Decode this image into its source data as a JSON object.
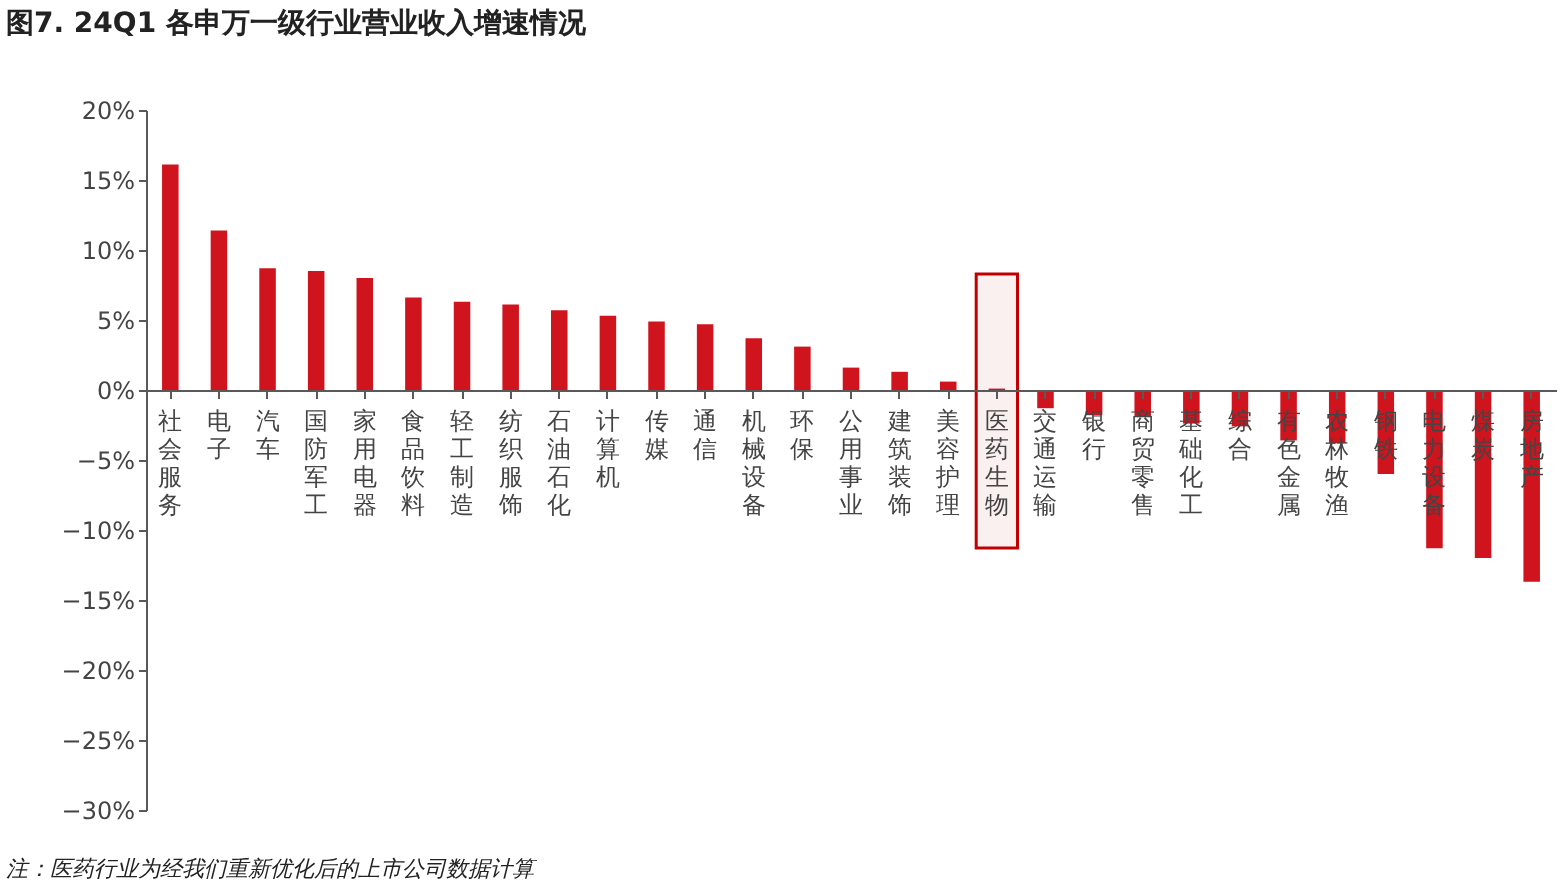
{
  "chart_data": {
    "type": "bar",
    "title": "图7. 24Q1 各申万一级行业营业收入增速情况",
    "categories": [
      "社会服务",
      "电子",
      "汽车",
      "国防军工",
      "家用电器",
      "食品饮料",
      "轻工制造",
      "纺织服饰",
      "石油石化",
      "计算机",
      "传媒",
      "通信",
      "机械设备",
      "环保",
      "公用事业",
      "建筑装饰",
      "美容护理",
      "医药生物",
      "交通运输",
      "银行",
      "商贸零售",
      "基础化工",
      "综合",
      "有色金属",
      "农林牧渔",
      "钢铁",
      "电力设备",
      "煤炭",
      "房地产"
    ],
    "values": [
      16.1,
      11.4,
      8.7,
      8.5,
      8.0,
      6.6,
      6.3,
      6.1,
      5.7,
      5.3,
      4.9,
      4.7,
      3.7,
      3.1,
      1.6,
      1.3,
      0.6,
      0.1,
      -1.3,
      -1.8,
      -1.9,
      -2.4,
      -2.6,
      -3.6,
      -3.8,
      -6.0,
      -11.3,
      -12.0,
      -13.7
    ],
    "color": "#d0141e",
    "ylim": [
      -30,
      20
    ],
    "yticks": [
      {
        "value": -30,
        "label": "−30%"
      },
      {
        "value": -25,
        "label": "−25%"
      },
      {
        "value": -20,
        "label": "−20%"
      },
      {
        "value": -15,
        "label": "−15%"
      },
      {
        "value": -10,
        "label": "−10%"
      },
      {
        "value": -5,
        "label": "−5%"
      },
      {
        "value": 0,
        "label": "0%"
      },
      {
        "value": 5,
        "label": "5%"
      },
      {
        "value": 10,
        "label": "10%"
      },
      {
        "value": 15,
        "label": "15%"
      },
      {
        "value": 20,
        "label": "20%"
      }
    ],
    "grid": false,
    "bands": [
      {
        "axis": "x",
        "from": "医药生物",
        "to": "医药生物",
        "color": "#c00000"
      }
    ],
    "annotations": [
      "注：医药行业为经我们重新优化后的上市公司数据计算"
    ]
  }
}
